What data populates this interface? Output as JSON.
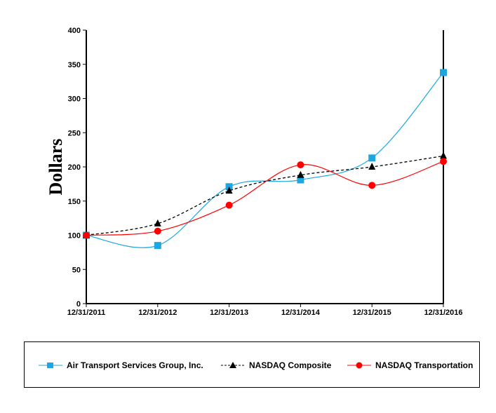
{
  "chart_data": {
    "type": "line",
    "ylabel": "Dollars",
    "ylim": [
      0,
      400
    ],
    "yticks": [
      "0",
      "50",
      "100",
      "150",
      "200",
      "250",
      "300",
      "350",
      "400"
    ],
    "categories": [
      "12/31/2011",
      "12/31/2012",
      "12/31/2013",
      "12/31/2014",
      "12/31/2015",
      "12/31/2016"
    ],
    "legend_position": "bottom",
    "grid": false,
    "series": [
      {
        "name": "Air Transport Services Group, Inc.",
        "color": "#1ea6e0",
        "marker": "square",
        "line": "solid",
        "values": [
          100,
          85,
          171,
          181,
          213,
          338
        ]
      },
      {
        "name": "NASDAQ Composite",
        "color": "#000000",
        "marker": "triangle",
        "line": "dashed",
        "values": [
          100,
          117,
          165,
          188,
          200,
          216
        ]
      },
      {
        "name": "NASDAQ Transportation",
        "color": "#ff0000",
        "marker": "circle",
        "line": "solid",
        "values": [
          100,
          106,
          144,
          203,
          173,
          208
        ]
      }
    ]
  }
}
